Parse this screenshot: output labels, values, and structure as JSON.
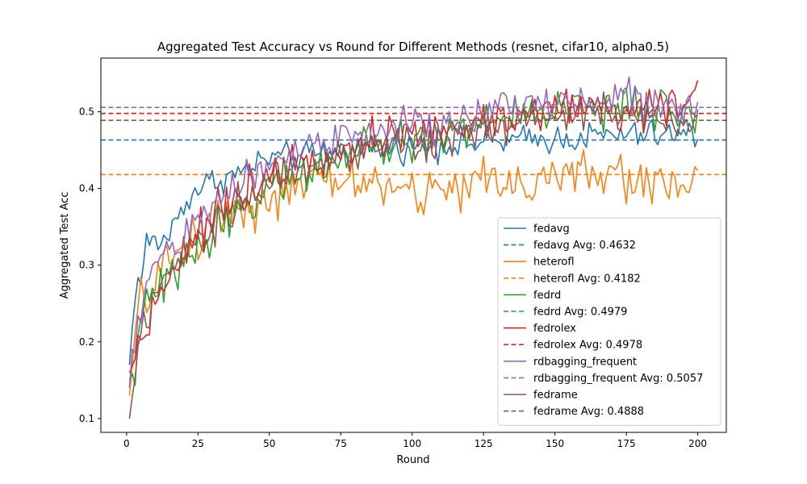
{
  "chart_data": {
    "type": "line",
    "title": "Aggregated Test Accuracy vs Round for Different Methods (resnet, cifar10, alpha0.5)",
    "xlabel": "Round",
    "ylabel": "Aggregated Test Acc",
    "xlim": [
      -9,
      210
    ],
    "ylim": [
      0.082,
      0.57
    ],
    "xticks": [
      0,
      25,
      50,
      75,
      100,
      125,
      150,
      175,
      200
    ],
    "yticks": [
      0.1,
      0.2,
      0.3,
      0.4,
      0.5
    ],
    "ytick_labels": [
      "0.1",
      "0.2",
      "0.3",
      "0.4",
      "0.5"
    ],
    "grid": false,
    "legend_position": "lower-right",
    "rounds": {
      "start": 1,
      "end": 200
    },
    "series": [
      {
        "name": "fedavg",
        "color": "#1f77b4",
        "average": 0.4632,
        "avg_label": "fedavg Avg: 0.4632",
        "keypoints": [
          [
            1,
            0.17
          ],
          [
            3,
            0.27
          ],
          [
            5,
            0.28
          ],
          [
            7,
            0.33
          ],
          [
            9,
            0.33
          ],
          [
            12,
            0.33
          ],
          [
            15,
            0.34
          ],
          [
            20,
            0.38
          ],
          [
            25,
            0.4
          ],
          [
            30,
            0.41
          ],
          [
            40,
            0.42
          ],
          [
            50,
            0.44
          ],
          [
            60,
            0.44
          ],
          [
            75,
            0.45
          ],
          [
            100,
            0.455
          ],
          [
            125,
            0.46
          ],
          [
            150,
            0.465
          ],
          [
            175,
            0.47
          ],
          [
            200,
            0.47
          ]
        ],
        "noise": 0.018
      },
      {
        "name": "heterofl",
        "color": "#ff7f0e",
        "average": 0.4182,
        "avg_label": "heterofl Avg: 0.4182",
        "keypoints": [
          [
            1,
            0.13
          ],
          [
            3,
            0.21
          ],
          [
            5,
            0.25
          ],
          [
            8,
            0.27
          ],
          [
            12,
            0.29
          ],
          [
            18,
            0.32
          ],
          [
            25,
            0.34
          ],
          [
            35,
            0.37
          ],
          [
            45,
            0.38
          ],
          [
            55,
            0.39
          ],
          [
            70,
            0.41
          ],
          [
            85,
            0.41
          ],
          [
            100,
            0.39
          ],
          [
            110,
            0.4
          ],
          [
            125,
            0.41
          ],
          [
            140,
            0.41
          ],
          [
            160,
            0.42
          ],
          [
            180,
            0.41
          ],
          [
            200,
            0.41
          ]
        ],
        "noise": 0.03
      },
      {
        "name": "fedrd",
        "color": "#2ca02c",
        "average": 0.4979,
        "avg_label": "fedrd Avg: 0.4979",
        "keypoints": [
          [
            1,
            0.15
          ],
          [
            3,
            0.17
          ],
          [
            5,
            0.22
          ],
          [
            8,
            0.26
          ],
          [
            12,
            0.27
          ],
          [
            18,
            0.29
          ],
          [
            25,
            0.33
          ],
          [
            35,
            0.36
          ],
          [
            45,
            0.39
          ],
          [
            55,
            0.41
          ],
          [
            70,
            0.43
          ],
          [
            85,
            0.45
          ],
          [
            100,
            0.46
          ],
          [
            120,
            0.48
          ],
          [
            140,
            0.5
          ],
          [
            160,
            0.51
          ],
          [
            180,
            0.5
          ],
          [
            200,
            0.5
          ]
        ],
        "noise": 0.025
      },
      {
        "name": "fedrolex",
        "color": "#d62728",
        "average": 0.4978,
        "avg_label": "fedrolex Avg: 0.4978",
        "keypoints": [
          [
            1,
            0.16
          ],
          [
            3,
            0.18
          ],
          [
            5,
            0.21
          ],
          [
            8,
            0.23
          ],
          [
            12,
            0.27
          ],
          [
            18,
            0.31
          ],
          [
            25,
            0.34
          ],
          [
            35,
            0.38
          ],
          [
            45,
            0.41
          ],
          [
            55,
            0.43
          ],
          [
            70,
            0.45
          ],
          [
            85,
            0.46
          ],
          [
            100,
            0.47
          ],
          [
            120,
            0.48
          ],
          [
            140,
            0.5
          ],
          [
            160,
            0.51
          ],
          [
            180,
            0.5
          ],
          [
            200,
            0.52
          ]
        ],
        "noise": 0.025
      },
      {
        "name": "rdbagging_frequent",
        "color": "#9467bd",
        "average": 0.5057,
        "avg_label": "rdbagging_frequent Avg: 0.5057",
        "keypoints": [
          [
            1,
            0.14
          ],
          [
            3,
            0.19
          ],
          [
            5,
            0.25
          ],
          [
            8,
            0.29
          ],
          [
            12,
            0.31
          ],
          [
            18,
            0.33
          ],
          [
            25,
            0.36
          ],
          [
            35,
            0.39
          ],
          [
            45,
            0.42
          ],
          [
            55,
            0.45
          ],
          [
            70,
            0.46
          ],
          [
            85,
            0.47
          ],
          [
            100,
            0.48
          ],
          [
            120,
            0.49
          ],
          [
            140,
            0.51
          ],
          [
            160,
            0.52
          ],
          [
            180,
            0.52
          ],
          [
            200,
            0.5
          ]
        ],
        "noise": 0.025
      },
      {
        "name": "fedrame",
        "color": "#8c564b",
        "average": 0.4888,
        "avg_label": "fedrame Avg: 0.4888",
        "keypoints": [
          [
            1,
            0.1
          ],
          [
            3,
            0.16
          ],
          [
            5,
            0.2
          ],
          [
            8,
            0.24
          ],
          [
            12,
            0.27
          ],
          [
            18,
            0.29
          ],
          [
            25,
            0.33
          ],
          [
            35,
            0.37
          ],
          [
            45,
            0.4
          ],
          [
            55,
            0.42
          ],
          [
            70,
            0.44
          ],
          [
            85,
            0.45
          ],
          [
            100,
            0.46
          ],
          [
            120,
            0.47
          ],
          [
            140,
            0.49
          ],
          [
            160,
            0.5
          ],
          [
            180,
            0.49
          ],
          [
            200,
            0.49
          ]
        ],
        "noise": 0.025
      }
    ]
  }
}
